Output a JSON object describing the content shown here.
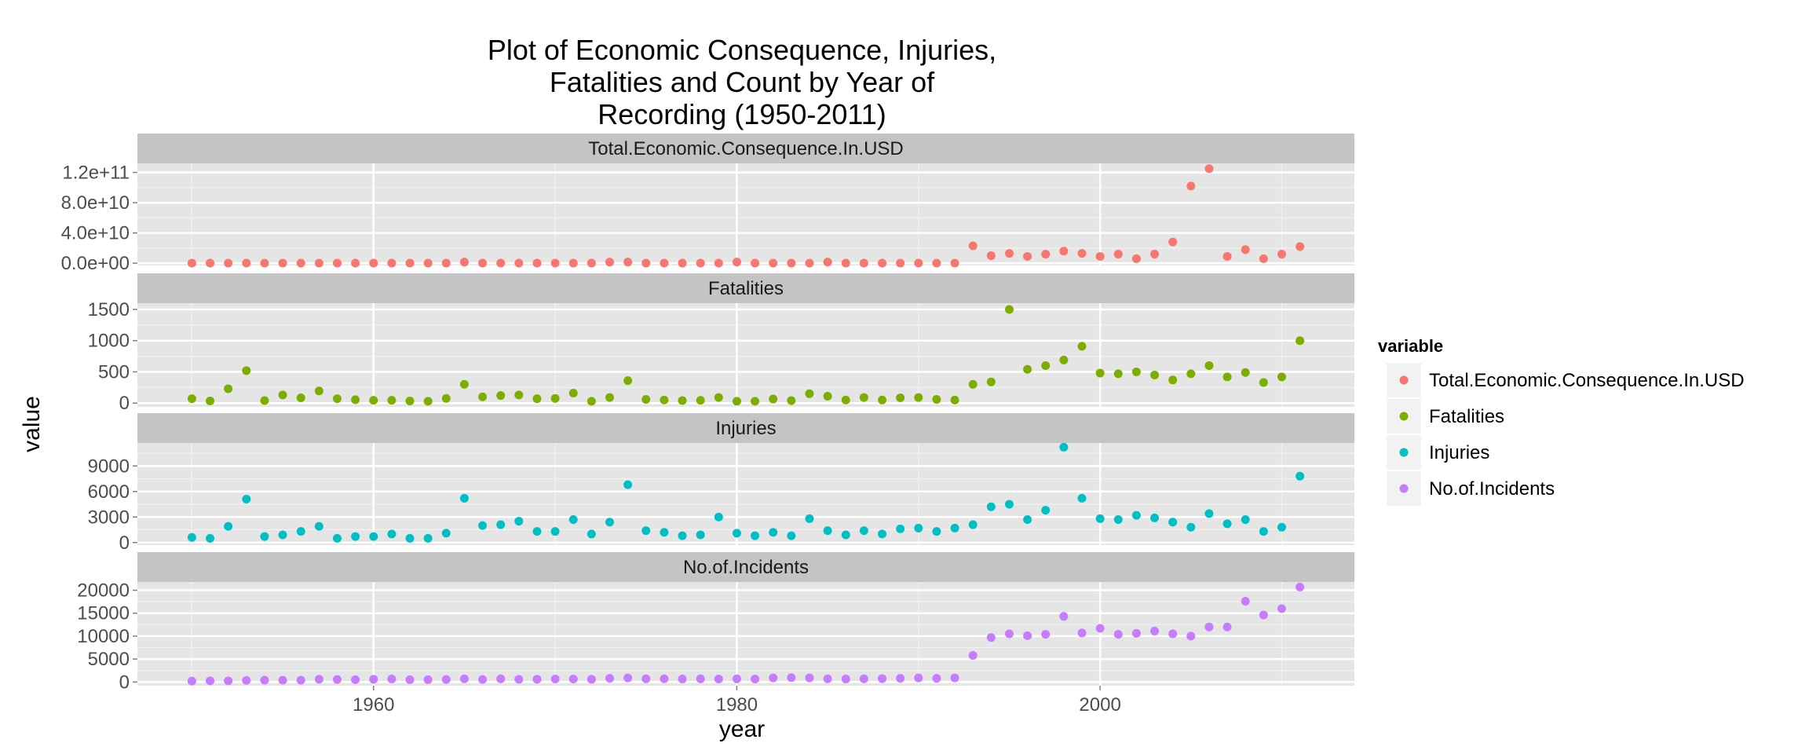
{
  "chart_data": {
    "type": "scatter",
    "title_lines": [
      "Plot of Economic Consequence, Injuries,",
      "Fatalities and Count by Year of",
      "Recording (1950-2011)"
    ],
    "xlabel": "year",
    "ylabel": "value",
    "xlim": [
      1947,
      2014
    ],
    "x_ticks": [
      1960,
      1980,
      2000
    ],
    "x_tick_labels": [
      "1960",
      "1980",
      "2000"
    ],
    "grid": true,
    "legend_position": "right",
    "legend_title": "variable",
    "x": [
      1950,
      1951,
      1952,
      1953,
      1954,
      1955,
      1956,
      1957,
      1958,
      1959,
      1960,
      1961,
      1962,
      1963,
      1964,
      1965,
      1966,
      1967,
      1968,
      1969,
      1970,
      1971,
      1972,
      1973,
      1974,
      1975,
      1976,
      1977,
      1978,
      1979,
      1980,
      1981,
      1982,
      1983,
      1984,
      1985,
      1986,
      1987,
      1988,
      1989,
      1990,
      1991,
      1992,
      1993,
      1994,
      1995,
      1996,
      1997,
      1998,
      1999,
      2000,
      2001,
      2002,
      2003,
      2004,
      2005,
      2006,
      2007,
      2008,
      2009,
      2010,
      2011
    ],
    "panels": [
      {
        "name": "Total.Economic.Consequence.In.USD",
        "color": "#F8766D",
        "ylim": [
          -3000000000.0,
          132000000000.0
        ],
        "y_ticks": [
          0,
          40000000000,
          80000000000,
          120000000000
        ],
        "y_tick_labels": [
          "0.0e+00",
          "4.0e+10",
          "8.0e+10",
          "1.2e+11"
        ],
        "values": [
          100000000.0,
          100000000.0,
          100000000.0,
          100000000.0,
          100000000.0,
          100000000.0,
          100000000.0,
          100000000.0,
          100000000.0,
          100000000.0,
          100000000.0,
          100000000.0,
          100000000.0,
          100000000.0,
          100000000.0,
          1500000000.0,
          100000000.0,
          100000000.0,
          100000000.0,
          100000000.0,
          100000000.0,
          100000000.0,
          100000000.0,
          1500000000.0,
          1500000000.0,
          100000000.0,
          100000000.0,
          100000000.0,
          100000000.0,
          100000000.0,
          1500000000.0,
          100000000.0,
          100000000.0,
          100000000.0,
          100000000.0,
          1500000000.0,
          100000000.0,
          100000000.0,
          100000000.0,
          100000000.0,
          100000000.0,
          100000000.0,
          100000000.0,
          23000000000.0,
          10000000000.0,
          13000000000.0,
          9000000000.0,
          12000000000.0,
          16000000000.0,
          13000000000.0,
          9000000000.0,
          12000000000.0,
          6000000000.0,
          12000000000.0,
          28000000000.0,
          102000000000.0,
          125000000000.0,
          9000000000.0,
          18000000000.0,
          6000000000.0,
          12000000000.0,
          22000000000.0
        ]
      },
      {
        "name": "Fatalities",
        "color": "#7CAE00",
        "ylim": [
          -60,
          1600
        ],
        "y_ticks": [
          0,
          500,
          1000,
          1500
        ],
        "y_tick_labels": [
          "0",
          "500",
          "1000",
          "1500"
        ],
        "values": [
          70,
          35,
          230,
          520,
          40,
          130,
          85,
          195,
          70,
          55,
          45,
          45,
          35,
          30,
          75,
          300,
          100,
          120,
          130,
          70,
          75,
          160,
          30,
          90,
          360,
          60,
          50,
          40,
          45,
          90,
          30,
          30,
          65,
          40,
          150,
          110,
          50,
          90,
          50,
          85,
          90,
          60,
          50,
          300,
          340,
          1500,
          540,
          600,
          690,
          910,
          480,
          470,
          500,
          450,
          370,
          470,
          600,
          420,
          490,
          330,
          420,
          1000
        ]
      },
      {
        "name": "Injuries",
        "color": "#00BFC4",
        "ylim": [
          -300,
          11700
        ],
        "y_ticks": [
          0,
          3000,
          6000,
          9000
        ],
        "y_tick_labels": [
          "0",
          "3000",
          "6000",
          "9000"
        ],
        "values": [
          600,
          500,
          1900,
          5100,
          700,
          900,
          1300,
          1900,
          500,
          700,
          700,
          1000,
          500,
          500,
          1100,
          5200,
          2000,
          2100,
          2500,
          1300,
          1300,
          2700,
          1000,
          2400,
          6800,
          1400,
          1200,
          800,
          900,
          3000,
          1100,
          800,
          1200,
          800,
          2800,
          1400,
          900,
          1400,
          1000,
          1600,
          1700,
          1300,
          1700,
          2100,
          4200,
          4500,
          2700,
          3800,
          11200,
          5200,
          2800,
          2700,
          3200,
          2900,
          2400,
          1800,
          3400,
          2200,
          2700,
          1300,
          1800,
          7800
        ]
      },
      {
        "name": "No.of.Incidents",
        "color": "#C77CFF",
        "ylim": [
          -800,
          21800
        ],
        "y_ticks": [
          0,
          5000,
          10000,
          15000,
          20000
        ],
        "y_tick_labels": [
          "0",
          "5000",
          "10000",
          "15000",
          "20000"
        ],
        "values": [
          200,
          250,
          250,
          350,
          400,
          400,
          400,
          600,
          550,
          500,
          600,
          650,
          500,
          500,
          550,
          700,
          550,
          700,
          600,
          600,
          650,
          650,
          600,
          800,
          900,
          700,
          700,
          650,
          700,
          650,
          700,
          650,
          900,
          950,
          900,
          700,
          650,
          700,
          750,
          800,
          900,
          800,
          900,
          5800,
          9700,
          10500,
          10100,
          10400,
          14300,
          10700,
          11700,
          10400,
          10600,
          11100,
          10500,
          10000,
          12000,
          12000,
          17600,
          14600,
          16000,
          20700
        ]
      }
    ]
  }
}
